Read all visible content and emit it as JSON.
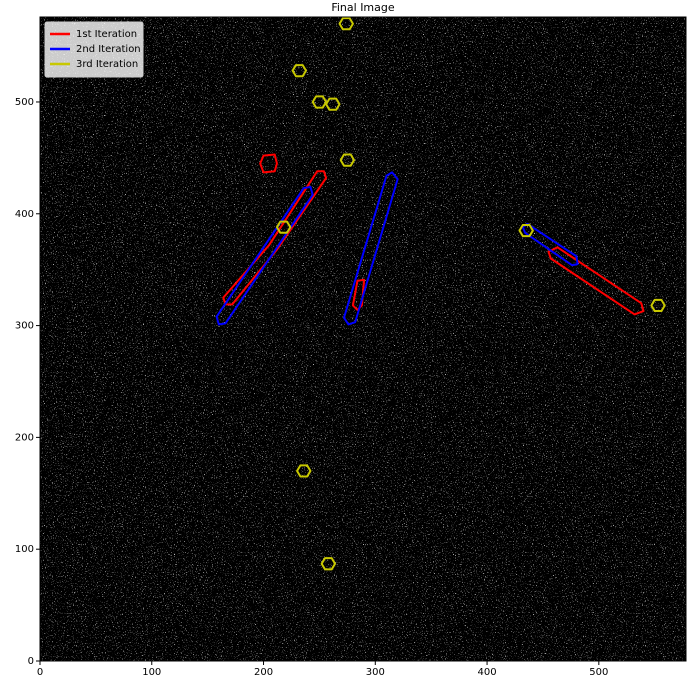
{
  "chart_data": {
    "type": "contour",
    "title": "Final Image",
    "xlim": [
      0,
      578
    ],
    "ylim": [
      0,
      576
    ],
    "xticks": [
      0,
      100,
      200,
      300,
      400,
      500
    ],
    "yticks": [
      0,
      100,
      200,
      300,
      400,
      500
    ],
    "legend": "upper left",
    "series": [
      {
        "name": "1st Iteration",
        "color": "#ff0000",
        "contours": [
          {
            "x": [
              200,
              210,
              212,
              210,
              200,
              197
            ],
            "y": [
              452,
              453,
              445,
              438,
              437,
              445
            ]
          },
          {
            "x": [
              164,
              205,
              248,
              254,
              256,
              212,
              172,
              166
            ],
            "y": [
              325,
              372,
              438,
              438,
              432,
              368,
              319,
              319
            ]
          },
          {
            "x": [
              280,
              284,
              290,
              288,
              284
            ],
            "y": [
              318,
              340,
              341,
              318,
              314
            ]
          },
          {
            "x": [
              463,
              538,
              540,
              532,
              457,
              455
            ],
            "y": [
              370,
              320,
              313,
              310,
              360,
              366
            ]
          }
        ]
      },
      {
        "name": "2nd Iteration",
        "color": "#0000ff",
        "contours": [
          {
            "x": [
              158,
              236,
              242,
              244,
              166,
              160
            ],
            "y": [
              308,
              423,
              424,
              417,
              302,
              301
            ]
          },
          {
            "x": [
              272,
              310,
              315,
              320,
              282,
              276
            ],
            "y": [
              307,
              434,
              437,
              431,
              303,
              301
            ]
          },
          {
            "x": [
              436,
              480,
              481,
              476,
              434,
              432
            ],
            "y": [
              391,
              362,
              355,
              354,
              383,
              388
            ]
          }
        ]
      },
      {
        "name": "3rd Iteration",
        "color": "#c8c800",
        "contours": [
          {
            "x": [
              268,
              271,
              277,
              280,
              277,
              271
            ],
            "y": [
              570,
              575,
              575,
              570,
              565,
              565
            ]
          },
          {
            "x": [
              226,
              229,
              235,
              238,
              235,
              229
            ],
            "y": [
              528,
              533,
              533,
              528,
              523,
              523
            ]
          },
          {
            "x": [
              244,
              247,
              253,
              256,
              253,
              247
            ],
            "y": [
              500,
              505,
              505,
              500,
              495,
              495
            ]
          },
          {
            "x": [
              256,
              259,
              265,
              268,
              265,
              259
            ],
            "y": [
              498,
              503,
              503,
              498,
              493,
              493
            ]
          },
          {
            "x": [
              269,
              272,
              278,
              281,
              278,
              272
            ],
            "y": [
              448,
              453,
              453,
              448,
              443,
              443
            ]
          },
          {
            "x": [
              212,
              215,
              221,
              224,
              221,
              215
            ],
            "y": [
              388,
              393,
              393,
              388,
              383,
              383
            ]
          },
          {
            "x": [
              429,
              432,
              438,
              441,
              438,
              432
            ],
            "y": [
              385,
              390,
              390,
              385,
              380,
              380
            ]
          },
          {
            "x": [
              547,
              550,
              556,
              559,
              556,
              550
            ],
            "y": [
              318,
              323,
              323,
              318,
              313,
              313
            ]
          },
          {
            "x": [
              230,
              233,
              239,
              242,
              239,
              233
            ],
            "y": [
              170,
              175,
              175,
              170,
              165,
              165
            ]
          },
          {
            "x": [
              252,
              255,
              261,
              264,
              261,
              255
            ],
            "y": [
              87,
              92,
              92,
              87,
              82,
              82
            ]
          }
        ]
      }
    ]
  }
}
